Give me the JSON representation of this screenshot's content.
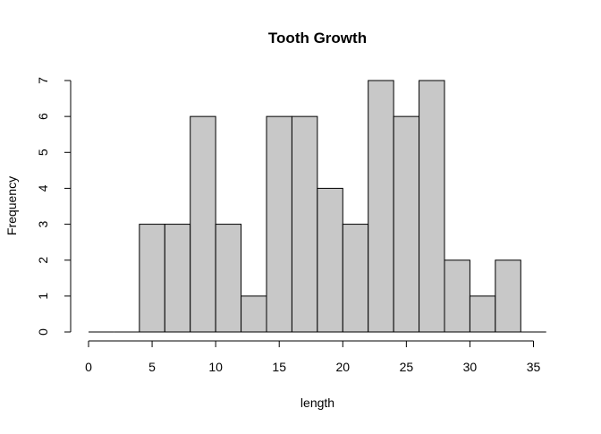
{
  "chart_data": {
    "type": "bar",
    "title": "Tooth Growth",
    "xlabel": "length",
    "ylabel": "Frequency",
    "bins": [
      {
        "start": 0,
        "end": 2,
        "count": 0
      },
      {
        "start": 2,
        "end": 4,
        "count": 0
      },
      {
        "start": 4,
        "end": 6,
        "count": 3
      },
      {
        "start": 6,
        "end": 8,
        "count": 3
      },
      {
        "start": 8,
        "end": 10,
        "count": 6
      },
      {
        "start": 10,
        "end": 12,
        "count": 3
      },
      {
        "start": 12,
        "end": 14,
        "count": 1
      },
      {
        "start": 14,
        "end": 16,
        "count": 6
      },
      {
        "start": 16,
        "end": 18,
        "count": 6
      },
      {
        "start": 18,
        "end": 20,
        "count": 4
      },
      {
        "start": 20,
        "end": 22,
        "count": 3
      },
      {
        "start": 22,
        "end": 24,
        "count": 7
      },
      {
        "start": 24,
        "end": 26,
        "count": 6
      },
      {
        "start": 26,
        "end": 28,
        "count": 7
      },
      {
        "start": 28,
        "end": 30,
        "count": 2
      },
      {
        "start": 30,
        "end": 32,
        "count": 1
      },
      {
        "start": 32,
        "end": 34,
        "count": 2
      },
      {
        "start": 34,
        "end": 36,
        "count": 0
      }
    ],
    "xlim": [
      0,
      36
    ],
    "ylim": [
      0,
      7
    ],
    "x_ticks": [
      "0",
      "5",
      "10",
      "15",
      "20",
      "25",
      "30",
      "35"
    ],
    "y_ticks": [
      "0",
      "1",
      "2",
      "3",
      "4",
      "5",
      "6",
      "7"
    ],
    "bar_fill": "#c8c8c8",
    "bar_stroke": "#000000",
    "grid": false,
    "legend": "none"
  }
}
